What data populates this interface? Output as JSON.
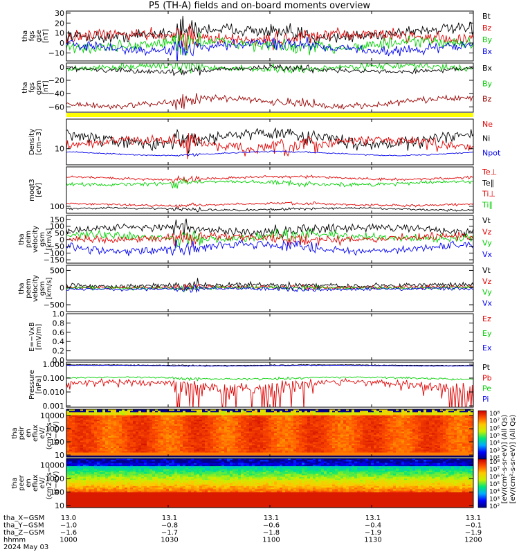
{
  "title": "P5 (TH-A) fields and on-board moments overview",
  "colors": {
    "black": "#000000",
    "red": "#e00000",
    "green": "#00d000",
    "blue": "#0000ee",
    "dark_red": "#990000",
    "yellow": "#ffff00"
  },
  "chart_data": [
    {
      "id": "fgs-gse",
      "type": "line",
      "ylabel": [
        "tha",
        "fgs",
        "gse",
        "[nT]"
      ],
      "ylim": [
        -18,
        32
      ],
      "ticks": [
        "30",
        "20",
        "10",
        "0",
        "−10"
      ],
      "tick_values": [
        30,
        20,
        10,
        0,
        -10
      ],
      "legend": [
        {
          "name": "Bt",
          "color": "#000000"
        },
        {
          "name": "Bz",
          "color": "#e00000"
        },
        {
          "name": "By",
          "color": "#00d000"
        },
        {
          "name": "Bx",
          "color": "#0000ee"
        }
      ],
      "series": [
        {
          "name": "Bt",
          "color": "#000000",
          "base": 10,
          "amp": 4,
          "noise": 5
        },
        {
          "name": "Bz",
          "color": "#e00000",
          "base": 6,
          "amp": 3,
          "noise": 5
        },
        {
          "name": "By",
          "color": "#00d000",
          "base": -2,
          "amp": 3,
          "noise": 5
        },
        {
          "name": "Bx",
          "color": "#0000ee",
          "base": -4,
          "amp": 4,
          "noise": 4
        }
      ]
    },
    {
      "id": "fgs-gsm",
      "type": "line",
      "ylabel": [
        "tha",
        "fgs",
        "gsm",
        "[nT]"
      ],
      "ylim": [
        -68,
        6
      ],
      "ticks": [
        "0",
        "−20",
        "−40",
        "−60"
      ],
      "tick_values": [
        0,
        -20,
        -40,
        -60
      ],
      "legend": [
        {
          "name": "Bx",
          "color": "#000000"
        },
        {
          "name": "By",
          "color": "#00d000"
        },
        {
          "name": "Bz",
          "color": "#990000"
        }
      ],
      "series": [
        {
          "name": "By",
          "color": "#00d000",
          "base": -1,
          "amp": 3,
          "noise": 4
        },
        {
          "name": "Bx",
          "color": "#000000",
          "base": -4,
          "amp": 3,
          "noise": 3
        },
        {
          "name": "Bz",
          "color": "#990000",
          "base": -53,
          "amp": 6,
          "noise": 4
        }
      ]
    },
    {
      "id": "density",
      "type": "line",
      "scale": "log",
      "ylabel": [
        "Density",
        "[cm−3]"
      ],
      "ylim": [
        5.5,
        30
      ],
      "ticks": [
        "10"
      ],
      "tick_values": [
        10
      ],
      "legend": [
        {
          "name": "Ne",
          "color": "#e00000"
        },
        {
          "name": "Ni",
          "color": "#000000"
        },
        {
          "name": "Npot",
          "color": "#0000ee"
        }
      ],
      "series": [
        {
          "name": "Ni",
          "color": "#000000",
          "base": 15,
          "amp": 3,
          "noise": 2.5
        },
        {
          "name": "Ne",
          "color": "#e00000",
          "base": 12,
          "amp": 2,
          "noise": 2
        },
        {
          "name": "Npot",
          "color": "#0000ee",
          "base": 8.4,
          "amp": 0.6,
          "noise": 0.15
        }
      ]
    },
    {
      "id": "temperature",
      "type": "line",
      "scale": "log",
      "ylabel": [
        "moqt3",
        "[eV]"
      ],
      "ylim": [
        60,
        1800
      ],
      "ticks": [
        "100"
      ],
      "tick_values": [
        100
      ],
      "legend": [
        {
          "name": "Te⊥",
          "color": "#e00000"
        },
        {
          "name": "Te∥",
          "color": "#000000"
        },
        {
          "name": "Ti⊥",
          "color": "#e00000"
        },
        {
          "name": "Ti∥",
          "color": "#00d000"
        }
      ],
      "series": [
        {
          "name": "Te⊥",
          "color": "#e00000",
          "base": 800,
          "amp": 80,
          "noise": 60
        },
        {
          "name": "Ti∥",
          "color": "#00d000",
          "base": 550,
          "amp": 60,
          "noise": 60
        },
        {
          "name": "Ti⊥",
          "color": "#e00000",
          "base": 115,
          "amp": 10,
          "noise": 8
        },
        {
          "name": "Te∥",
          "color": "#000000",
          "base": 82,
          "amp": 6,
          "noise": 5
        }
      ]
    },
    {
      "id": "peim-velocity",
      "type": "line",
      "ylabel": [
        "tha",
        "peim",
        "velocity",
        "gsm",
        "[km/s]"
      ],
      "ylim": [
        -175,
        180
      ],
      "ticks": [
        "150",
        "100",
        "50",
        "0",
        "−50",
        "−100",
        "−150"
      ],
      "tick_values": [
        150,
        100,
        50,
        0,
        -50,
        -100,
        -150
      ],
      "legend": [
        {
          "name": "Vt",
          "color": "#000000"
        },
        {
          "name": "Vz",
          "color": "#e00000"
        },
        {
          "name": "Vy",
          "color": "#00d000"
        },
        {
          "name": "Vx",
          "color": "#0000ee"
        }
      ],
      "series": [
        {
          "name": "Vt",
          "color": "#000000",
          "base": 75,
          "amp": 20,
          "noise": 25
        },
        {
          "name": "Vy",
          "color": "#00d000",
          "base": 20,
          "amp": 15,
          "noise": 25
        },
        {
          "name": "Vz",
          "color": "#e00000",
          "base": 10,
          "amp": 15,
          "noise": 25
        },
        {
          "name": "Vx",
          "color": "#0000ee",
          "base": -60,
          "amp": 25,
          "noise": 25
        }
      ]
    },
    {
      "id": "peem-velocity",
      "type": "line",
      "ylabel": [
        "tha",
        "peem",
        "velocity",
        "gsm",
        "[km/s]"
      ],
      "ylim": [
        -700,
        650
      ],
      "ticks": [
        "500",
        "0",
        "−500"
      ],
      "tick_values": [
        500,
        0,
        -500
      ],
      "legend": [
        {
          "name": "Vt",
          "color": "#000000"
        },
        {
          "name": "Vz",
          "color": "#e00000"
        },
        {
          "name": "Vy",
          "color": "#00d000"
        },
        {
          "name": "Vx",
          "color": "#0000ee"
        }
      ],
      "series": [
        {
          "name": "Vt",
          "color": "#000000",
          "base": 60,
          "amp": 20,
          "noise": 60
        },
        {
          "name": "Vz",
          "color": "#e00000",
          "base": 10,
          "amp": 10,
          "noise": 40
        },
        {
          "name": "Vy",
          "color": "#00d000",
          "base": -10,
          "amp": 10,
          "noise": 40
        },
        {
          "name": "Vx",
          "color": "#0000ee",
          "base": -40,
          "amp": 15,
          "noise": 40
        }
      ]
    },
    {
      "id": "efield",
      "type": "line",
      "ylabel": [
        "E=−VxB",
        "[mV/m]"
      ],
      "ylim": [
        0,
        1.0
      ],
      "ticks": [
        "1.0",
        "0.8",
        "0.6",
        "0.4",
        "0.2",
        "0.0"
      ],
      "tick_values": [
        1.0,
        0.8,
        0.6,
        0.4,
        0.2,
        0.0
      ],
      "legend": [
        {
          "name": "Ez",
          "color": "#e00000"
        },
        {
          "name": "Ey",
          "color": "#00d000"
        },
        {
          "name": "Ex",
          "color": "#0000ee"
        }
      ],
      "series": []
    },
    {
      "id": "pressure",
      "type": "line",
      "scale": "log",
      "ylabel": [
        "Pressure",
        "[nPa]"
      ],
      "ylim": [
        0.0008,
        1.4
      ],
      "ticks": [
        "1.000",
        "0.100",
        "0.010",
        "0.001"
      ],
      "tick_values": [
        1.0,
        0.1,
        0.01,
        0.001
      ],
      "legend": [
        {
          "name": "Pt",
          "color": "#000000"
        },
        {
          "name": "Pb",
          "color": "#e00000"
        },
        {
          "name": "Pe",
          "color": "#00d000"
        },
        {
          "name": "Pi",
          "color": "#0000ee"
        }
      ],
      "series": [
        {
          "name": "Pt",
          "color": "#000000",
          "base": 0.85,
          "amp": 0.05,
          "noise": 0.04
        },
        {
          "name": "Pi",
          "color": "#0000ee",
          "base": 0.78,
          "amp": 0.05,
          "noise": 0.03
        },
        {
          "name": "Pe",
          "color": "#00d000",
          "base": 0.1,
          "amp": 0.015,
          "noise": 0.012
        },
        {
          "name": "Pb",
          "color": "#e00000",
          "base": 0.035,
          "amp": 0.02,
          "noise": 0.025
        }
      ]
    },
    {
      "id": "peir-eflux",
      "type": "heatmap",
      "scale": "log",
      "ylabel": [
        "tha",
        "peir",
        "en",
        "eflux",
        "eV/",
        "(cm2−s−",
        "sr−eV)"
      ],
      "ylim": [
        7,
        30000
      ],
      "ticks": [
        "10000",
        "1000",
        "100",
        "10"
      ],
      "tick_values": [
        10000,
        1000,
        100,
        10
      ],
      "profile": "ion"
    },
    {
      "id": "peer-eflux",
      "type": "heatmap",
      "scale": "log",
      "ylabel": [
        "tha",
        "peer",
        "en",
        "eflux",
        "eV/",
        "(cm2−s−",
        "sr−eV)"
      ],
      "ylim": [
        7,
        30000
      ],
      "ticks": [
        "10000",
        "1000",
        "100",
        "10"
      ],
      "tick_values": [
        10000,
        1000,
        100,
        10
      ],
      "profile": "electron"
    }
  ],
  "colorbar": {
    "ticks": [
      "10⁸",
      "10⁷",
      "10⁶",
      "10⁵",
      "10⁴",
      "10³",
      "10²",
      "10⁸",
      "10⁷",
      "10⁶",
      "10⁵",
      "10⁴",
      "10³",
      "10²"
    ],
    "label": "[eV/(cm²-s-sr-eV)] (All Qs)",
    "label_overlay": "[eV/(cm²-s-sr-eV)] (All Qs)"
  },
  "x_axis": {
    "rows": [
      {
        "label": "tha_X−GSM",
        "values": [
          "13.0",
          "13.1",
          "13.1",
          "13.1",
          "13.1"
        ]
      },
      {
        "label": "tha_Y−GSM",
        "values": [
          "−1.0",
          "−0.8",
          "−0.6",
          "−0.4",
          "−0.1"
        ]
      },
      {
        "label": "tha_Z−GSM",
        "values": [
          "−1.6",
          "−1.7",
          "−1.8",
          "−1.9",
          "−1.9"
        ]
      },
      {
        "label": "hhmm",
        "values": [
          "1000",
          "1030",
          "1100",
          "1130",
          "1200"
        ]
      }
    ],
    "date": "2024 May 03"
  }
}
